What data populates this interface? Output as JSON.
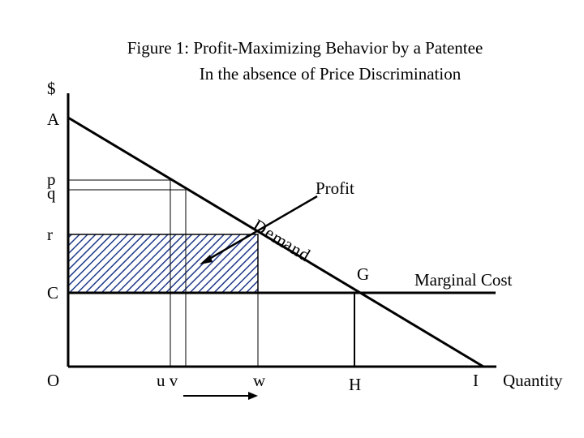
{
  "title": {
    "line1": "Figure 1:  Profit-Maximizing Behavior by a Patentee",
    "line2": "In the absence of Price Discrimination"
  },
  "axis": {
    "y_label": "$",
    "x_label": "Quantity",
    "origin": "O"
  },
  "y_ticks": {
    "a": "A",
    "p": "p",
    "q": "q",
    "r": "r",
    "c": "C"
  },
  "x_ticks": {
    "uv": "u v",
    "w": "w",
    "h": "H",
    "i": "I"
  },
  "curves": {
    "demand": [
      "D",
      "e",
      "m",
      "a",
      "n",
      "d"
    ],
    "marginal_cost": "Marginal Cost",
    "g_point": "G"
  },
  "annotations": {
    "profit": "Profit"
  },
  "colors": {
    "hatch": "#1f3a8a",
    "line": "#000000"
  }
}
